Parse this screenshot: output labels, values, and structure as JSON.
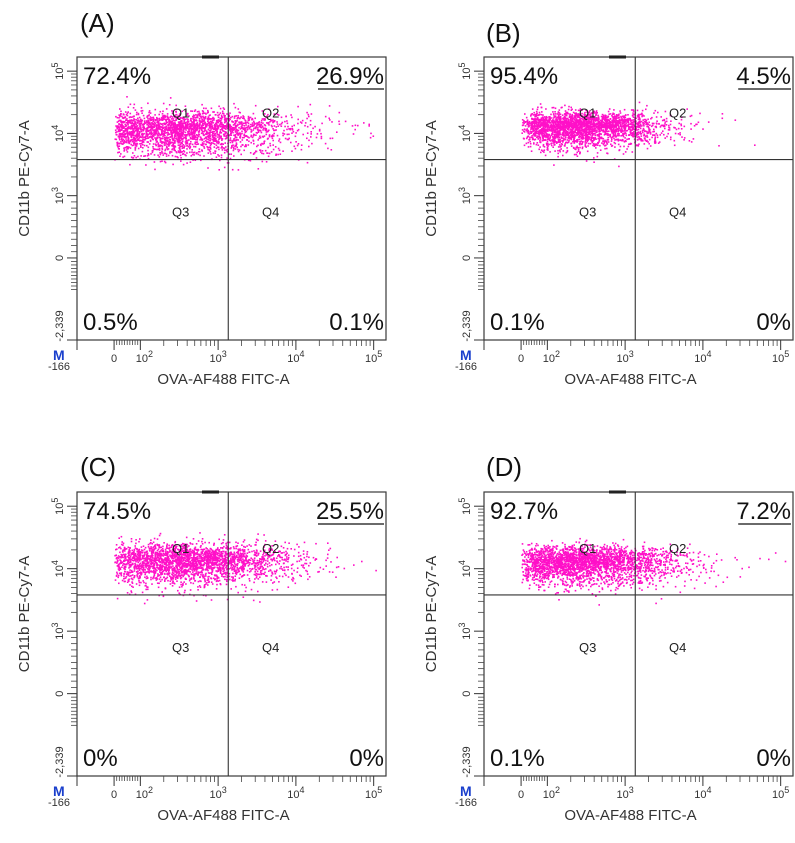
{
  "chart_data": [
    {
      "type": "scatter",
      "panel_label": "(A)",
      "xlabel": "OVA-AF488 FITC-A",
      "ylabel": "CD11b PE-Cy7-A",
      "x_tick_labels": [
        "-166",
        "0",
        "10^2",
        "10^3",
        "10^4",
        "10^5"
      ],
      "y_tick_labels": [
        "-2,339",
        "0",
        "10^3",
        "10^4",
        "10^5"
      ],
      "gate_marker": "M",
      "quadrants": [
        {
          "name": "Q1",
          "percent": "72.4%"
        },
        {
          "name": "Q2",
          "percent": "26.9%"
        },
        {
          "name": "Q3",
          "percent": "0.5%"
        },
        {
          "name": "Q4",
          "percent": "0.1%"
        }
      ],
      "cluster": {
        "x_center": 350,
        "y_center": 11500,
        "x_spread_decades": 0.55,
        "y_spread_decades": 0.16
      },
      "gate_x": 1350,
      "gate_y": 3800,
      "color": "#ff10c8"
    },
    {
      "type": "scatter",
      "panel_label": "(B)",
      "xlabel": "OVA-AF488 FITC-A",
      "ylabel": "CD11b PE-Cy7-A",
      "x_tick_labels": [
        "-166",
        "0",
        "10^2",
        "10^3",
        "10^4",
        "10^5"
      ],
      "y_tick_labels": [
        "-2,339",
        "0",
        "10^3",
        "10^4",
        "10^5"
      ],
      "gate_marker": "M",
      "quadrants": [
        {
          "name": "Q1",
          "percent": "95.4%"
        },
        {
          "name": "Q2",
          "percent": "4.5%"
        },
        {
          "name": "Q3",
          "percent": "0.1%"
        },
        {
          "name": "Q4",
          "percent": "0%"
        }
      ],
      "cluster": {
        "x_center": 260,
        "y_center": 13000,
        "x_spread_decades": 0.42,
        "y_spread_decades": 0.13
      },
      "gate_x": 1350,
      "gate_y": 3800,
      "color": "#ff10c8"
    },
    {
      "type": "scatter",
      "panel_label": "(C)",
      "xlabel": "OVA-AF488 FITC-A",
      "ylabel": "CD11b PE-Cy7-A",
      "x_tick_labels": [
        "-166",
        "0",
        "10^2",
        "10^3",
        "10^4",
        "10^5"
      ],
      "y_tick_labels": [
        "-2,339",
        "0",
        "10^3",
        "10^4",
        "10^5"
      ],
      "gate_marker": "M",
      "quadrants": [
        {
          "name": "Q1",
          "percent": "74.5%"
        },
        {
          "name": "Q2",
          "percent": "25.5%"
        },
        {
          "name": "Q3",
          "percent": "0%"
        },
        {
          "name": "Q4",
          "percent": "0%"
        }
      ],
      "cluster": {
        "x_center": 420,
        "y_center": 13500,
        "x_spread_decades": 0.55,
        "y_spread_decades": 0.15
      },
      "gate_x": 1350,
      "gate_y": 3800,
      "color": "#ff10c8"
    },
    {
      "type": "scatter",
      "panel_label": "(D)",
      "xlabel": "OVA-AF488 FITC-A",
      "ylabel": "CD11b PE-Cy7-A",
      "x_tick_labels": [
        "-166",
        "0",
        "10^2",
        "10^3",
        "10^4",
        "10^5"
      ],
      "y_tick_labels": [
        "-2,339",
        "0",
        "10^3",
        "10^4",
        "10^5"
      ],
      "gate_marker": "M",
      "quadrants": [
        {
          "name": "Q1",
          "percent": "92.7%"
        },
        {
          "name": "Q2",
          "percent": "7.2%"
        },
        {
          "name": "Q3",
          "percent": "0.1%"
        },
        {
          "name": "Q4",
          "percent": "0%"
        }
      ],
      "cluster": {
        "x_center": 300,
        "y_center": 13000,
        "x_spread_decades": 0.48,
        "y_spread_decades": 0.14
      },
      "gate_x": 1350,
      "gate_y": 3800,
      "color": "#ff10c8"
    }
  ]
}
